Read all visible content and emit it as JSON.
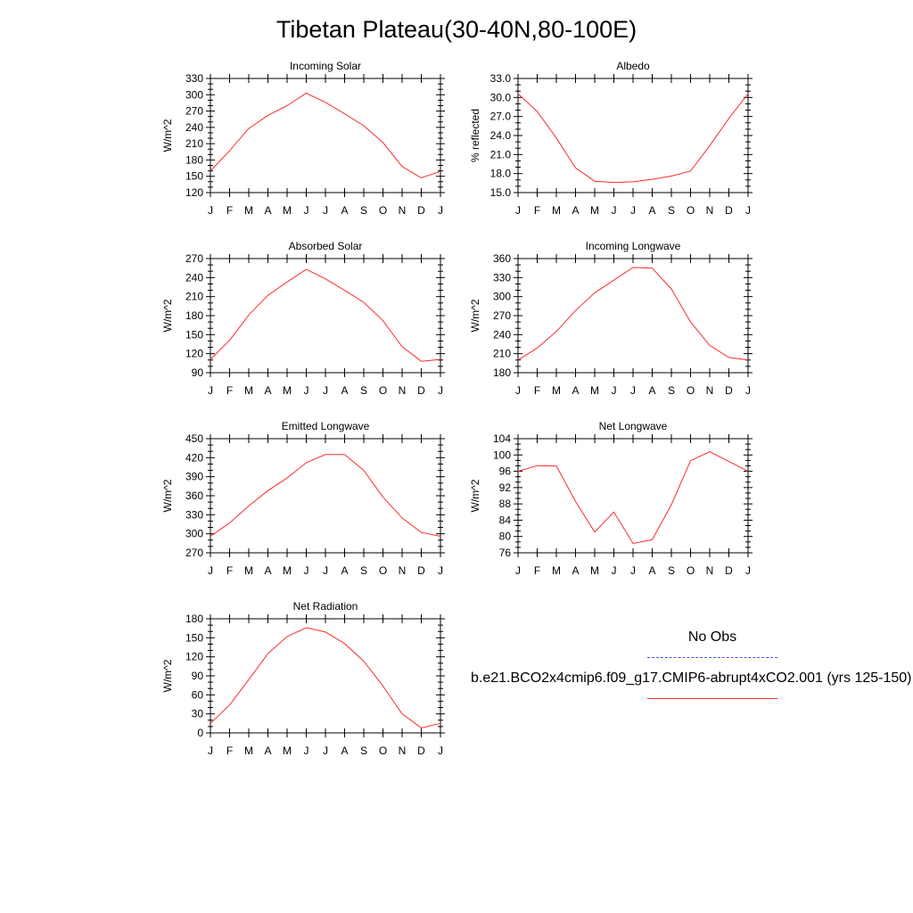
{
  "title": "Tibetan Plateau(30-40N,80-100E)",
  "legend": {
    "obs_label": "No Obs",
    "obs_color": "#4a4aff",
    "model_label": "b.e21.BCO2x4cmip6.f09_g17.CMIP6-abrupt4xCO2.001 (yrs 125-150)",
    "model_color": "#ff2a2a"
  },
  "chart_data": [
    {
      "type": "line",
      "title": "Incoming Solar",
      "ylabel": "W/m^2",
      "categories": [
        "J",
        "F",
        "M",
        "A",
        "M",
        "J",
        "J",
        "A",
        "S",
        "O",
        "N",
        "D",
        "J"
      ],
      "ylim": [
        120,
        330
      ],
      "yticks": [
        120,
        150,
        180,
        210,
        240,
        270,
        300,
        330
      ],
      "series": [
        {
          "values": [
            160,
            197,
            238,
            262,
            280,
            303,
            286,
            265,
            243,
            212,
            168,
            147,
            159
          ]
        }
      ]
    },
    {
      "type": "line",
      "title": "Albedo",
      "ylabel": "% reflected",
      "categories": [
        "J",
        "F",
        "M",
        "A",
        "M",
        "J",
        "J",
        "A",
        "S",
        "O",
        "N",
        "D",
        "J"
      ],
      "ylim": [
        15.0,
        33.0
      ],
      "yticks": [
        "15.0",
        "18.0",
        "21.0",
        "24.0",
        "27.0",
        "30.0",
        "33.0"
      ],
      "series": [
        {
          "values": [
            30.6,
            27.8,
            23.6,
            18.9,
            16.8,
            16.6,
            16.7,
            17.1,
            17.6,
            18.4,
            22.4,
            26.7,
            30.6
          ]
        }
      ]
    },
    {
      "type": "line",
      "title": "Absorbed Solar",
      "ylabel": "W/m^2",
      "categories": [
        "J",
        "F",
        "M",
        "A",
        "M",
        "J",
        "J",
        "A",
        "S",
        "O",
        "N",
        "D",
        "J"
      ],
      "ylim": [
        90,
        270
      ],
      "yticks": [
        90,
        120,
        150,
        180,
        210,
        240,
        270
      ],
      "series": [
        {
          "values": [
            111,
            141,
            181,
            212,
            233,
            253,
            238,
            220,
            201,
            172,
            131,
            108,
            111
          ]
        }
      ]
    },
    {
      "type": "line",
      "title": "Incoming Longwave",
      "ylabel": "W/m^2",
      "categories": [
        "J",
        "F",
        "M",
        "A",
        "M",
        "J",
        "J",
        "A",
        "S",
        "O",
        "N",
        "D",
        "J"
      ],
      "ylim": [
        180,
        360
      ],
      "yticks": [
        180,
        210,
        240,
        270,
        300,
        330,
        360
      ],
      "series": [
        {
          "values": [
            200,
            219,
            245,
            278,
            306,
            326,
            346,
            345,
            312,
            260,
            223,
            204,
            200
          ]
        }
      ]
    },
    {
      "type": "line",
      "title": "Emitted Longwave",
      "ylabel": "W/m^2",
      "categories": [
        "J",
        "F",
        "M",
        "A",
        "M",
        "J",
        "J",
        "A",
        "S",
        "O",
        "N",
        "D",
        "J"
      ],
      "ylim": [
        270,
        450
      ],
      "yticks": [
        270,
        300,
        330,
        360,
        390,
        420,
        450
      ],
      "series": [
        {
          "values": [
            296,
            317,
            344,
            368,
            388,
            412,
            425,
            425,
            400,
            358,
            325,
            302,
            296
          ]
        }
      ]
    },
    {
      "type": "line",
      "title": "Net Longwave",
      "ylabel": "W/m^2",
      "categories": [
        "J",
        "F",
        "M",
        "A",
        "M",
        "J",
        "J",
        "A",
        "S",
        "O",
        "N",
        "D",
        "J"
      ],
      "ylim": [
        76,
        104
      ],
      "yticks": [
        76,
        80,
        84,
        88,
        92,
        96,
        100,
        104
      ],
      "series": [
        {
          "values": [
            96.0,
            97.4,
            97.3,
            88.6,
            81.1,
            86.0,
            78.3,
            79.2,
            87.8,
            98.6,
            100.8,
            98.4,
            96.0
          ]
        }
      ]
    },
    {
      "type": "line",
      "title": "Net Radiation",
      "ylabel": "W/m^2",
      "categories": [
        "J",
        "F",
        "M",
        "A",
        "M",
        "J",
        "J",
        "A",
        "S",
        "O",
        "N",
        "D",
        "J"
      ],
      "ylim": [
        0,
        180
      ],
      "yticks": [
        0,
        30,
        60,
        90,
        120,
        150,
        180
      ],
      "series": [
        {
          "values": [
            15,
            44,
            84,
            125,
            152,
            166,
            159,
            141,
            113,
            74,
            30,
            8,
            15
          ]
        }
      ]
    }
  ]
}
